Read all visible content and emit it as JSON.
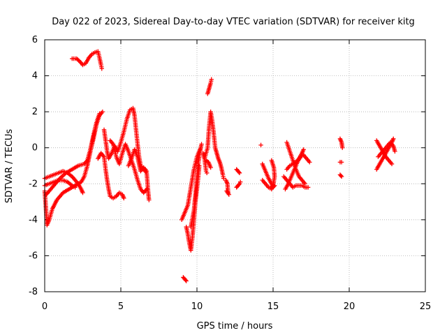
{
  "chart_data": {
    "type": "scatter",
    "title": "Day 022 of 2023, Sidereal Day-to-day VTEC variation (SDTVAR) for receiver kitg",
    "xlabel": "GPS time / hours",
    "ylabel": "SDTVAR / TECUs",
    "xlim": [
      0,
      25
    ],
    "ylim": [
      -8,
      6
    ],
    "xticks": [
      0,
      5,
      10,
      15,
      20,
      25
    ],
    "yticks": [
      -8,
      -6,
      -4,
      -2,
      0,
      2,
      4,
      6
    ],
    "grid": true,
    "marker": "+",
    "color": "#ff0000",
    "tracks": [
      [
        [
          0.0,
          -2.4
        ],
        [
          0.1,
          -3.6
        ],
        [
          0.15,
          -4.3
        ],
        [
          0.3,
          -4.0
        ],
        [
          0.5,
          -3.4
        ],
        [
          0.8,
          -2.9
        ],
        [
          1.2,
          -2.5
        ],
        [
          1.6,
          -2.3
        ],
        [
          2.0,
          -2.1
        ],
        [
          2.4,
          -1.9
        ],
        [
          2.6,
          -1.6
        ],
        [
          2.8,
          -1.0
        ],
        [
          3.0,
          -0.2
        ],
        [
          3.2,
          0.5
        ],
        [
          3.4,
          1.3
        ],
        [
          3.6,
          1.8
        ],
        [
          3.8,
          2.0
        ]
      ],
      [
        [
          0.0,
          -1.7
        ],
        [
          0.3,
          -1.6
        ],
        [
          0.6,
          -1.5
        ],
        [
          0.9,
          -1.4
        ],
        [
          1.2,
          -1.3
        ],
        [
          1.5,
          -1.4
        ],
        [
          1.8,
          -1.6
        ],
        [
          2.0,
          -1.8
        ],
        [
          2.2,
          -2.0
        ],
        [
          2.4,
          -2.3
        ],
        [
          2.5,
          -2.5
        ]
      ],
      [
        [
          0.0,
          -2.1
        ],
        [
          0.3,
          -2.0
        ],
        [
          0.6,
          -1.9
        ],
        [
          0.9,
          -1.8
        ],
        [
          1.2,
          -1.8
        ],
        [
          1.5,
          -1.9
        ],
        [
          1.8,
          -2.1
        ],
        [
          2.0,
          -2.2
        ]
      ],
      [
        [
          0.1,
          -2.6
        ],
        [
          0.4,
          -2.3
        ],
        [
          0.7,
          -2.0
        ],
        [
          1.0,
          -1.7
        ],
        [
          1.4,
          -1.4
        ],
        [
          1.8,
          -1.2
        ],
        [
          2.2,
          -1.0
        ],
        [
          2.6,
          -0.9
        ],
        [
          2.8,
          -0.7
        ],
        [
          3.0,
          -0.1
        ],
        [
          3.2,
          0.7
        ],
        [
          3.4,
          1.4
        ],
        [
          3.6,
          1.9
        ]
      ],
      [
        [
          1.8,
          4.95
        ],
        [
          2.1,
          4.95
        ],
        [
          2.3,
          4.8
        ],
        [
          2.5,
          4.6
        ],
        [
          2.7,
          4.7
        ],
        [
          2.9,
          5.0
        ],
        [
          3.1,
          5.2
        ],
        [
          3.3,
          5.3
        ],
        [
          3.5,
          5.35
        ],
        [
          3.6,
          5.0
        ],
        [
          3.7,
          4.6
        ],
        [
          3.75,
          4.4
        ]
      ],
      [
        [
          3.5,
          -0.6
        ],
        [
          3.7,
          -0.3
        ],
        [
          3.9,
          -0.5
        ],
        [
          4.0,
          -1.2
        ],
        [
          4.1,
          -1.8
        ],
        [
          4.2,
          -2.3
        ],
        [
          4.3,
          -2.7
        ],
        [
          4.5,
          -2.8
        ],
        [
          4.7,
          -2.7
        ],
        [
          4.9,
          -2.5
        ],
        [
          5.1,
          -2.6
        ],
        [
          5.2,
          -2.8
        ]
      ],
      [
        [
          3.9,
          1.0
        ],
        [
          4.0,
          0.4
        ],
        [
          4.1,
          -0.2
        ],
        [
          4.2,
          -0.6
        ],
        [
          4.4,
          -0.3
        ],
        [
          4.6,
          0.1
        ],
        [
          4.8,
          -0.2
        ],
        [
          5.0,
          0.3
        ],
        [
          5.2,
          0.9
        ],
        [
          5.4,
          1.6
        ],
        [
          5.6,
          2.1
        ],
        [
          5.8,
          2.2
        ],
        [
          5.9,
          1.8
        ],
        [
          6.0,
          1.0
        ],
        [
          6.1,
          0.2
        ],
        [
          6.2,
          -0.5
        ],
        [
          6.3,
          -1.0
        ],
        [
          6.5,
          -1.2
        ],
        [
          6.7,
          -1.4
        ],
        [
          6.8,
          -2.5
        ],
        [
          6.85,
          -2.9
        ]
      ],
      [
        [
          4.3,
          0.4
        ],
        [
          4.5,
          0.2
        ],
        [
          4.7,
          -0.5
        ],
        [
          4.9,
          -0.9
        ],
        [
          5.1,
          -0.3
        ],
        [
          5.3,
          0.2
        ],
        [
          5.5,
          -0.2
        ],
        [
          5.7,
          -0.7
        ],
        [
          5.9,
          -1.2
        ],
        [
          6.1,
          -1.8
        ],
        [
          6.3,
          -2.3
        ],
        [
          6.5,
          -2.5
        ],
        [
          6.7,
          -2.3
        ]
      ],
      [
        [
          5.5,
          -1.0
        ],
        [
          5.7,
          -0.6
        ],
        [
          5.9,
          -0.1
        ],
        [
          6.1,
          -0.5
        ],
        [
          6.3,
          -1.3
        ],
        [
          6.5,
          -1.1
        ],
        [
          6.7,
          -1.3
        ]
      ],
      [
        [
          9.1,
          -7.2
        ],
        [
          9.2,
          -7.3
        ],
        [
          9.3,
          -7.4
        ]
      ],
      [
        [
          9.0,
          -4.0
        ],
        [
          9.2,
          -3.6
        ],
        [
          9.4,
          -3.2
        ],
        [
          9.6,
          -2.2
        ],
        [
          9.8,
          -1.2
        ],
        [
          10.0,
          -0.5
        ],
        [
          10.2,
          -0.1
        ]
      ],
      [
        [
          9.3,
          -4.4
        ],
        [
          9.4,
          -4.8
        ],
        [
          9.5,
          -5.3
        ],
        [
          9.6,
          -5.7
        ],
        [
          9.7,
          -5.0
        ],
        [
          9.8,
          -4.0
        ],
        [
          9.9,
          -3.0
        ],
        [
          10.0,
          -2.3
        ],
        [
          10.1,
          -1.5
        ],
        [
          10.15,
          -1.0
        ]
      ],
      [
        [
          9.6,
          -4.4
        ],
        [
          9.8,
          -3.5
        ],
        [
          9.9,
          -2.6
        ],
        [
          10.0,
          -1.6
        ],
        [
          10.1,
          -0.8
        ],
        [
          10.2,
          -0.2
        ],
        [
          10.3,
          0.2
        ]
      ],
      [
        [
          10.4,
          -0.3
        ],
        [
          10.5,
          -0.6
        ],
        [
          10.6,
          -1.3
        ],
        [
          10.65,
          -1.4
        ]
      ],
      [
        [
          10.5,
          -0.6
        ],
        [
          10.7,
          0.0
        ],
        [
          10.8,
          1.2
        ],
        [
          10.9,
          2.0
        ],
        [
          11.0,
          1.5
        ],
        [
          11.1,
          0.8
        ],
        [
          11.2,
          0.0
        ],
        [
          11.3,
          -0.3
        ],
        [
          11.4,
          -0.6
        ],
        [
          11.5,
          -0.8
        ],
        [
          11.6,
          -1.1
        ],
        [
          11.7,
          -1.5
        ],
        [
          11.75,
          -1.7
        ]
      ],
      [
        [
          10.7,
          3.0
        ],
        [
          10.8,
          3.3
        ],
        [
          10.9,
          3.6
        ],
        [
          10.95,
          3.8
        ]
      ],
      [
        [
          10.6,
          -0.7
        ],
        [
          10.75,
          -0.8
        ],
        [
          10.9,
          -1.1
        ]
      ],
      [
        [
          11.9,
          -1.8
        ],
        [
          12.0,
          -2.0
        ],
        [
          12.05,
          -2.5
        ]
      ],
      [
        [
          11.95,
          -2.4
        ],
        [
          12.1,
          -2.6
        ]
      ],
      [
        [
          12.6,
          -1.2
        ],
        [
          12.7,
          -1.3
        ],
        [
          12.8,
          -1.4
        ]
      ],
      [
        [
          12.6,
          -2.2
        ],
        [
          12.7,
          -2.1
        ],
        [
          12.8,
          -2.0
        ],
        [
          12.85,
          -1.9
        ]
      ],
      [
        [
          14.2,
          0.15
        ]
      ],
      [
        [
          14.3,
          -0.9
        ],
        [
          14.5,
          -1.3
        ],
        [
          14.7,
          -1.7
        ],
        [
          14.9,
          -2.0
        ],
        [
          15.0,
          -2.2
        ],
        [
          15.1,
          -2.1
        ]
      ],
      [
        [
          14.3,
          -1.8
        ],
        [
          14.5,
          -2.0
        ],
        [
          14.7,
          -2.2
        ],
        [
          14.9,
          -2.3
        ],
        [
          15.0,
          -2.1
        ],
        [
          15.1,
          -1.6
        ],
        [
          15.05,
          -1.1
        ],
        [
          14.9,
          -0.7
        ]
      ],
      [
        [
          15.9,
          0.3
        ],
        [
          16.1,
          -0.2
        ],
        [
          16.3,
          -0.7
        ],
        [
          16.5,
          -1.2
        ],
        [
          16.7,
          -1.6
        ],
        [
          16.9,
          -1.8
        ],
        [
          17.1,
          -2.0
        ]
      ],
      [
        [
          15.7,
          -1.6
        ],
        [
          15.9,
          -1.8
        ],
        [
          16.1,
          -2.0
        ],
        [
          16.3,
          -2.2
        ],
        [
          16.5,
          -2.1
        ],
        [
          16.7,
          -2.1
        ],
        [
          16.9,
          -2.1
        ],
        [
          17.1,
          -2.2
        ],
        [
          17.3,
          -2.2
        ]
      ],
      [
        [
          15.8,
          -2.3
        ],
        [
          16.0,
          -2.0
        ],
        [
          16.2,
          -1.6
        ],
        [
          16.4,
          -1.2
        ],
        [
          16.6,
          -0.8
        ],
        [
          16.8,
          -0.5
        ],
        [
          17.0,
          -0.4
        ],
        [
          17.2,
          -0.6
        ],
        [
          17.4,
          -0.8
        ]
      ],
      [
        [
          15.9,
          -1.2
        ],
        [
          16.1,
          -1.0
        ],
        [
          16.3,
          -0.9
        ],
        [
          16.5,
          -0.8
        ],
        [
          16.7,
          -0.6
        ],
        [
          16.9,
          -0.3
        ],
        [
          17.0,
          -0.1
        ]
      ],
      [
        [
          19.4,
          0.5
        ],
        [
          19.5,
          0.3
        ],
        [
          19.55,
          0.0
        ]
      ],
      [
        [
          19.4,
          -0.8
        ],
        [
          19.5,
          -0.8
        ]
      ],
      [
        [
          19.4,
          -1.5
        ],
        [
          19.5,
          -1.6
        ]
      ],
      [
        [
          21.8,
          0.4
        ],
        [
          22.0,
          0.1
        ],
        [
          22.2,
          -0.2
        ],
        [
          22.4,
          -0.5
        ],
        [
          22.6,
          -0.7
        ],
        [
          22.8,
          -0.9
        ]
      ],
      [
        [
          21.8,
          -1.2
        ],
        [
          22.0,
          -0.9
        ],
        [
          22.2,
          -0.6
        ],
        [
          22.4,
          -0.3
        ],
        [
          22.6,
          0.0
        ],
        [
          22.8,
          0.3
        ],
        [
          22.9,
          0.5
        ]
      ],
      [
        [
          21.9,
          -0.5
        ],
        [
          22.1,
          -0.3
        ],
        [
          22.3,
          -0.1
        ],
        [
          22.5,
          0.1
        ],
        [
          22.7,
          0.3
        ],
        [
          22.9,
          0.1
        ],
        [
          23.0,
          -0.2
        ]
      ]
    ]
  }
}
